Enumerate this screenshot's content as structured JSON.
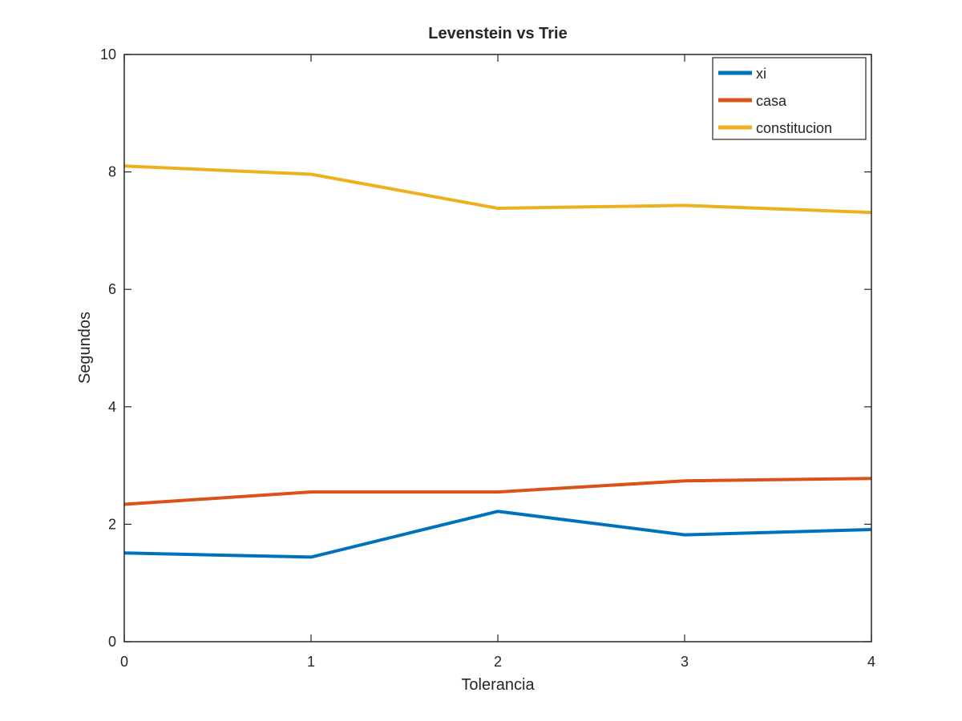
{
  "chart_data": {
    "type": "line",
    "title": "Levenstein vs Trie",
    "xlabel": "Tolerancia",
    "ylabel": "Segundos",
    "x": [
      0,
      1,
      2,
      3,
      4
    ],
    "xlim": [
      0,
      4
    ],
    "ylim": [
      0,
      10
    ],
    "xticks": [
      0,
      1,
      2,
      3,
      4
    ],
    "yticks": [
      0,
      2,
      4,
      6,
      8,
      10
    ],
    "grid": false,
    "legend_position": "top-right",
    "series": [
      {
        "name": "xi",
        "color": "#0072bd",
        "values": [
          1.51,
          1.44,
          2.22,
          1.82,
          1.91
        ]
      },
      {
        "name": "casa",
        "color": "#d95319",
        "values": [
          2.34,
          2.55,
          2.55,
          2.74,
          2.78
        ]
      },
      {
        "name": "constitucion",
        "color": "#edb120",
        "values": [
          8.1,
          7.96,
          7.38,
          7.43,
          7.31
        ]
      }
    ]
  }
}
